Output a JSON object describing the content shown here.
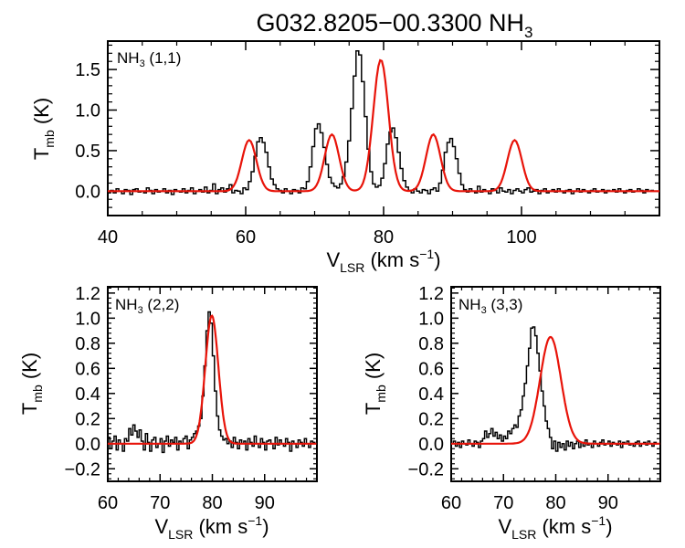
{
  "figure": {
    "title_main": "G032.8205−00.3300 NH",
    "title_sub": "3"
  },
  "axis_text": {
    "ylabel_main": "T",
    "ylabel_sub": "mb",
    "ylabel_tail": " (K)",
    "xlabel_main": "V",
    "xlabel_sub": "LSR",
    "xlabel_tail": " (km s",
    "xlabel_sup": "−1",
    "xlabel_close": ")"
  },
  "chart_data": [
    {
      "id": "nh3_11",
      "type": "line",
      "panel_label": {
        "main": "NH",
        "sub": "3",
        "tail": " (1,1)"
      },
      "xlim": [
        40,
        120
      ],
      "ylim": [
        -0.3,
        1.85
      ],
      "xticks": [
        40,
        60,
        80,
        100
      ],
      "xtick_labels": [
        "40",
        "60",
        "80",
        "100"
      ],
      "yticks": [
        0.0,
        0.5,
        1.0,
        1.5
      ],
      "ytick_labels": [
        "0.0",
        "0.5",
        "1.0",
        "1.5"
      ],
      "series": [
        {
          "name": "observed",
          "style": "step",
          "color": "#000000",
          "x_start": 40,
          "x_step": 0.4,
          "y": [
            -0.02,
            0.01,
            -0.02,
            0.03,
            0.0,
            -0.03,
            0.02,
            0.01,
            -0.04,
            0.02,
            0.03,
            -0.01,
            0.0,
            -0.02,
            0.04,
            0.01,
            -0.03,
            0.02,
            -0.01,
            0.0,
            0.03,
            -0.02,
            0.01,
            -0.04,
            0.02,
            0.0,
            -0.01,
            0.03,
            -0.02,
            0.01,
            0.04,
            -0.03,
            0.0,
            0.02,
            -0.01,
            0.05,
            -0.02,
            0.01,
            0.09,
            -0.03,
            0.02,
            0.04,
            -0.01,
            0.03,
            0.08,
            -0.02,
            0.01,
            0.0,
            -0.03,
            0.04,
            0.02,
            0.12,
            0.24,
            0.43,
            0.61,
            0.66,
            0.6,
            0.48,
            0.3,
            0.15,
            0.08,
            0.03,
            0.01,
            -0.02,
            0.03,
            0.0,
            -0.03,
            0.02,
            0.01,
            -0.02,
            0.04,
            0.03,
            0.12,
            0.3,
            0.55,
            0.77,
            0.83,
            0.72,
            0.54,
            0.33,
            0.17,
            0.1,
            0.06,
            0.04,
            0.09,
            0.18,
            0.36,
            0.62,
            1.02,
            1.42,
            1.73,
            1.68,
            1.35,
            0.92,
            0.52,
            0.24,
            0.09,
            0.05,
            0.07,
            0.16,
            0.34,
            0.58,
            0.73,
            0.78,
            0.66,
            0.48,
            0.28,
            0.13,
            0.05,
            0.01,
            -0.02,
            0.03,
            0.0,
            -0.02,
            0.02,
            0.01,
            -0.03,
            0.02,
            0.04,
            0.0,
            0.1,
            0.26,
            0.48,
            0.6,
            0.65,
            0.55,
            0.4,
            0.22,
            0.08,
            0.02,
            -0.01,
            0.03,
            0.0,
            -0.02,
            0.06,
            -0.01,
            0.02,
            0.0,
            -0.03,
            0.03,
            0.01,
            -0.02,
            0.04,
            0.0,
            -0.01,
            0.02,
            -0.03,
            0.01,
            0.03,
            0.0,
            -0.02,
            0.02,
            0.04,
            -0.01,
            0.0,
            0.02,
            -0.03,
            0.01,
            0.03,
            -0.02,
            0.0,
            0.02,
            -0.01,
            0.03,
            0.0,
            -0.02,
            0.01,
            0.02,
            -0.03,
            0.0,
            0.03,
            -0.01,
            0.02,
            0.0,
            -0.02,
            0.01,
            0.03,
            -0.01,
            0.0,
            0.02,
            -0.02,
            0.01,
            0.0,
            0.02,
            -0.01,
            0.03,
            0.0,
            -0.02,
            0.01,
            0.02,
            -0.01,
            0.0,
            0.03,
            0.01,
            -0.02,
            0.02,
            0.0,
            0.01
          ]
        },
        {
          "name": "fit",
          "style": "line",
          "color": "#e8140a",
          "x_start": 40,
          "x_step": 0.25,
          "gaussians": [
            {
              "amp": 0.63,
              "center": 60.5,
              "sigma": 1.05
            },
            {
              "amp": 0.7,
              "center": 72.5,
              "sigma": 1.05
            },
            {
              "amp": 1.62,
              "center": 79.6,
              "sigma": 1.1
            },
            {
              "amp": 0.7,
              "center": 87.2,
              "sigma": 1.05
            },
            {
              "amp": 0.63,
              "center": 99.0,
              "sigma": 1.05
            }
          ]
        }
      ]
    },
    {
      "id": "nh3_22",
      "type": "line",
      "panel_label": {
        "main": "NH",
        "sub": "3",
        "tail": " (2,2)"
      },
      "xlim": [
        60,
        100
      ],
      "ylim": [
        -0.3,
        1.25
      ],
      "xticks": [
        60,
        70,
        80,
        90
      ],
      "xtick_labels": [
        "60",
        "70",
        "80",
        "90"
      ],
      "yticks": [
        -0.2,
        0.0,
        0.2,
        0.4,
        0.6,
        0.8,
        1.0,
        1.2
      ],
      "ytick_labels": [
        "−0.2",
        "0.0",
        "0.2",
        "0.4",
        "0.6",
        "0.8",
        "1.0",
        "1.2"
      ],
      "series": [
        {
          "name": "observed",
          "style": "step",
          "color": "#000000",
          "x_start": 60,
          "x_step": 0.4,
          "y": [
            0.05,
            -0.04,
            0.02,
            0.06,
            -0.05,
            0.03,
            0.0,
            -0.06,
            0.04,
            0.02,
            0.12,
            0.07,
            0.15,
            0.1,
            0.05,
            0.11,
            0.02,
            -0.05,
            0.08,
            0.01,
            -0.06,
            0.03,
            0.05,
            -0.03,
            0.0,
            0.04,
            -0.07,
            0.02,
            0.06,
            -0.02,
            0.03,
            0.01,
            0.05,
            -0.05,
            0.02,
            0.0,
            0.04,
            0.06,
            -0.04,
            0.03,
            0.05,
            0.08,
            0.1,
            0.14,
            0.2,
            0.38,
            0.62,
            0.9,
            1.05,
            0.96,
            0.7,
            0.42,
            0.22,
            0.11,
            0.06,
            0.03,
            0.04,
            0.0,
            0.02,
            -0.03,
            0.05,
            0.01,
            -0.04,
            0.03,
            0.0,
            0.02,
            -0.05,
            0.04,
            0.01,
            -0.02,
            0.06,
            0.0,
            -0.03,
            0.04,
            0.01,
            -0.05,
            0.02,
            0.03,
            0.0,
            -0.04,
            0.05,
            -0.01,
            0.03,
            0.0,
            -0.02,
            0.04,
            0.01,
            -0.06,
            0.02,
            0.0,
            -0.03,
            0.03,
            0.01,
            -0.02,
            0.04,
            0.0,
            -0.03,
            0.02,
            0.01,
            0.0
          ]
        },
        {
          "name": "fit",
          "style": "line",
          "color": "#e8140a",
          "x_start": 60,
          "x_step": 0.15,
          "gaussians": [
            {
              "amp": 1.02,
              "center": 79.9,
              "sigma": 1.25
            }
          ]
        }
      ]
    },
    {
      "id": "nh3_33",
      "type": "line",
      "panel_label": {
        "main": "NH",
        "sub": "3",
        "tail": " (3,3)"
      },
      "xlim": [
        60,
        100
      ],
      "ylim": [
        -0.3,
        1.25
      ],
      "xticks": [
        60,
        70,
        80,
        90
      ],
      "xtick_labels": [
        "60",
        "70",
        "80",
        "90"
      ],
      "yticks": [
        -0.2,
        0.0,
        0.2,
        0.4,
        0.6,
        0.8,
        1.0,
        1.2
      ],
      "ytick_labels": [
        "−0.2",
        "0.0",
        "0.2",
        "0.4",
        "0.6",
        "0.8",
        "1.0",
        "1.2"
      ],
      "series": [
        {
          "name": "observed",
          "style": "step",
          "color": "#000000",
          "x_start": 60,
          "x_step": 0.4,
          "y": [
            0.0,
            0.02,
            -0.02,
            0.01,
            -0.03,
            0.02,
            0.0,
            -0.01,
            0.03,
            0.0,
            -0.02,
            0.02,
            0.01,
            -0.03,
            0.02,
            0.04,
            0.1,
            0.05,
            0.08,
            0.12,
            0.06,
            0.09,
            0.04,
            0.07,
            0.02,
            0.06,
            0.04,
            0.1,
            0.08,
            0.12,
            0.15,
            0.13,
            0.22,
            0.27,
            0.38,
            0.48,
            0.62,
            0.76,
            0.92,
            0.93,
            0.86,
            0.72,
            0.58,
            0.42,
            0.3,
            0.18,
            0.12,
            0.05,
            -0.04,
            0.02,
            -0.06,
            0.01,
            -0.03,
            0.0,
            -0.05,
            0.02,
            -0.02,
            0.01,
            -0.04,
            0.0,
            0.02,
            -0.03,
            0.01,
            -0.02,
            0.03,
            -0.01,
            0.0,
            -0.03,
            0.02,
            0.0,
            -0.02,
            0.01,
            0.03,
            -0.01,
            0.0,
            0.02,
            -0.02,
            0.01,
            0.0,
            -0.01,
            0.02,
            -0.03,
            0.01,
            0.0,
            0.02,
            -0.01,
            0.0,
            -0.02,
            0.01,
            0.02,
            -0.02,
            0.0,
            0.01,
            -0.01,
            0.02,
            0.0,
            -0.02,
            0.01,
            0.0,
            0.0
          ]
        },
        {
          "name": "fit",
          "style": "line",
          "color": "#e8140a",
          "x_start": 60,
          "x_step": 0.15,
          "gaussians": [
            {
              "amp": 0.85,
              "center": 79.0,
              "sigma": 2.0
            }
          ]
        }
      ]
    }
  ]
}
